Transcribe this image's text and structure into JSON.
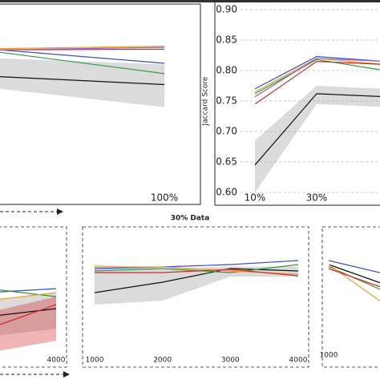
{
  "chart_data": [
    {
      "type": "line",
      "categories": [
        null,
        "100%"
      ],
      "ylim": [
        0.6,
        0.9
      ],
      "series": [
        {
          "name": "black",
          "color": "#111111",
          "values": [
            0.79,
            0.777
          ],
          "lower": [
            0.77,
            0.74
          ],
          "upper": [
            0.82,
            0.81
          ]
        },
        {
          "name": "blue",
          "color": "#3b4fd0",
          "values": [
            0.834,
            0.812
          ]
        },
        {
          "name": "green",
          "color": "#2e9a3a",
          "values": [
            0.83,
            0.795
          ]
        },
        {
          "name": "orange",
          "color": "#f0a030",
          "values": [
            0.836,
            0.84
          ]
        },
        {
          "name": "red",
          "color": "#d62728",
          "values": [
            0.834,
            0.835
          ]
        },
        {
          "name": "purple",
          "color": "#9467bd",
          "values": [
            0.834,
            0.838
          ]
        }
      ]
    },
    {
      "type": "line",
      "categories": [
        "10%",
        "30%",
        null
      ],
      "ylim": [
        0.6,
        0.9
      ],
      "ylabel": "Jaccard Score",
      "grid": true,
      "yticks": [
        {
          "value": 0.6,
          "label": "0.60"
        },
        0.65,
        {
          "value": 0.7,
          "label": "0.70"
        },
        0.75,
        {
          "value": 0.8,
          "label": "0.80"
        },
        0.85,
        {
          "value": 0.9,
          "label": "0.90"
        }
      ],
      "series": [
        {
          "name": "black",
          "color": "#111111",
          "values": [
            0.645,
            0.762,
            0.757
          ],
          "lower": [
            0.6,
            0.745,
            0.74
          ],
          "upper": [
            0.685,
            0.775,
            0.77
          ]
        },
        {
          "name": "blue",
          "color": "#3b4fd0",
          "values": [
            0.77,
            0.823,
            0.815
          ]
        },
        {
          "name": "orange",
          "color": "#f0a030",
          "values": [
            0.765,
            0.82,
            0.81
          ]
        },
        {
          "name": "green",
          "color": "#2e9a3a",
          "values": [
            0.762,
            0.818,
            0.8
          ]
        },
        {
          "name": "red",
          "color": "#d62728",
          "values": [
            0.745,
            0.815,
            0.81
          ]
        },
        {
          "name": "purple",
          "color": "#9467bd",
          "values": [
            0.757,
            0.82,
            0.815
          ]
        }
      ]
    },
    {
      "type": "line",
      "title": "30% Data",
      "x": [
        1000,
        2000,
        3000,
        4000
      ],
      "xlim": [
        1000,
        4000
      ],
      "xticks": [
        1000,
        2000,
        3000,
        4000
      ],
      "ylim": [
        0.6,
        0.9
      ],
      "series": [
        {
          "name": "black",
          "color": "#111111",
          "values": [
            0.75,
            0.776,
            0.81,
            0.804
          ],
          "lower": [
            0.72,
            0.73,
            0.79,
            0.79
          ],
          "upper": [
            0.82,
            0.81,
            0.815,
            0.815
          ]
        },
        {
          "name": "blue",
          "color": "#3b4fd0",
          "values": [
            0.81,
            0.814,
            0.82,
            0.83
          ]
        },
        {
          "name": "green",
          "color": "#2e9a3a",
          "values": [
            0.804,
            0.81,
            0.8,
            0.82
          ]
        },
        {
          "name": "orange",
          "color": "#f0a030",
          "values": [
            0.814,
            0.814,
            0.804,
            0.796
          ]
        },
        {
          "name": "red",
          "color": "#d62728",
          "values": [
            0.8,
            0.8,
            0.808,
            0.792
          ]
        }
      ]
    },
    {
      "type": "line",
      "x": [
        3000,
        4000
      ],
      "xlim": [
        1000,
        4000
      ],
      "xticks": [
        4000
      ],
      "ylim": [
        0.6,
        0.9
      ],
      "series": [
        {
          "name": "black",
          "color": "#111111",
          "values": [
            0.69,
            0.71
          ],
          "lower": [
            0.64,
            0.66
          ],
          "upper": [
            0.73,
            0.75
          ]
        },
        {
          "name": "red",
          "color": "#d62728",
          "values": [
            0.66,
            0.72
          ],
          "lower": [
            0.6,
            0.63
          ],
          "upper": [
            0.7,
            0.74
          ]
        },
        {
          "name": "green",
          "color": "#2e9a3a",
          "values": [
            0.76,
            0.74
          ]
        },
        {
          "name": "blue",
          "color": "#3b4fd0",
          "values": [
            0.75,
            0.76
          ]
        },
        {
          "name": "orange",
          "color": "#f0a030",
          "values": [
            0.73,
            0.75
          ]
        }
      ]
    },
    {
      "type": "line",
      "x": [
        1000,
        2000
      ],
      "xlim": [
        1000,
        4000
      ],
      "xticks": [
        1000
      ],
      "ylim": [
        0.6,
        0.9
      ],
      "series": [
        {
          "name": "black",
          "color": "#111111",
          "values": [
            0.82,
            0.76
          ]
        },
        {
          "name": "blue",
          "color": "#3b4fd0",
          "values": [
            0.83,
            0.79
          ]
        },
        {
          "name": "green",
          "color": "#2e9a3a",
          "values": [
            0.815,
            0.74
          ]
        },
        {
          "name": "orange",
          "color": "#f0a030",
          "values": [
            0.82,
            0.7
          ]
        },
        {
          "name": "red",
          "color": "#d62728",
          "values": [
            0.81,
            0.75
          ]
        }
      ]
    }
  ]
}
